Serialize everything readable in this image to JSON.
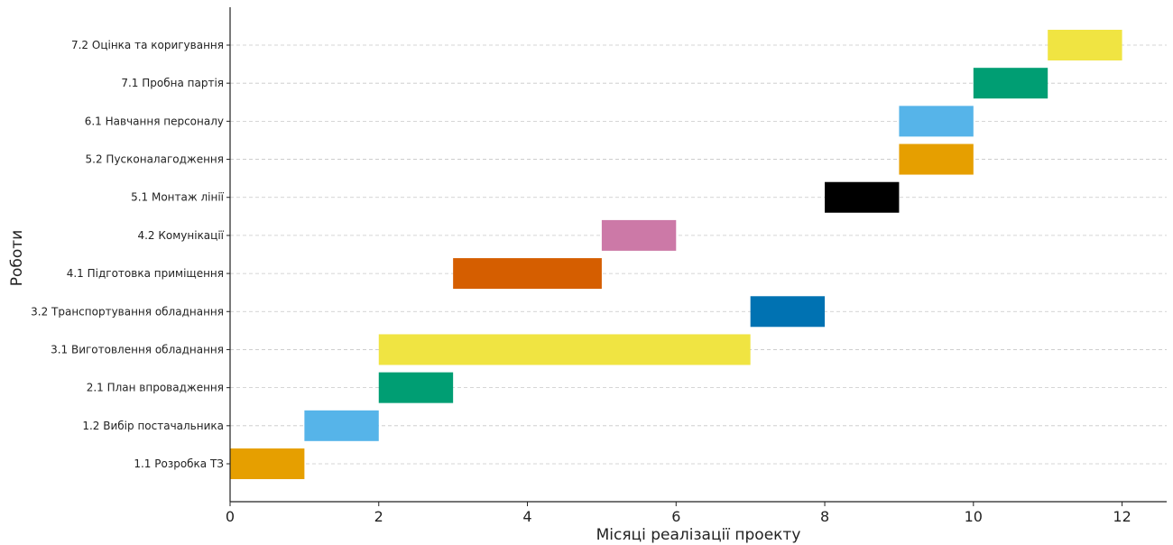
{
  "chart_data": {
    "type": "gantt",
    "title": "",
    "xlabel": "Місяці реалізації проекту",
    "ylabel": "Роботи",
    "xlim": [
      0,
      12.6
    ],
    "xticks": [
      0,
      2,
      4,
      6,
      8,
      10,
      12
    ],
    "grid": "horizontal dashed",
    "tasks": [
      {
        "label": "1.1 Розробка ТЗ",
        "start": 0,
        "end": 1,
        "color": "#E69F00"
      },
      {
        "label": "1.2 Вибір постачальника",
        "start": 1,
        "end": 2,
        "color": "#56B4E9"
      },
      {
        "label": "2.1 План впровадження",
        "start": 2,
        "end": 3,
        "color": "#009E73"
      },
      {
        "label": "3.1 Виготовлення обладнання",
        "start": 2,
        "end": 7,
        "color": "#F0E442"
      },
      {
        "label": "3.2 Транспортування обладнання",
        "start": 7,
        "end": 8,
        "color": "#0072B2"
      },
      {
        "label": "4.1 Підготовка приміщення",
        "start": 3,
        "end": 5,
        "color": "#D55E00"
      },
      {
        "label": "4.2 Комунікації",
        "start": 5,
        "end": 6,
        "color": "#CC79A7"
      },
      {
        "label": "5.1 Монтаж лінії",
        "start": 8,
        "end": 9,
        "color": "#000000"
      },
      {
        "label": "5.2 Пусконалагодження",
        "start": 9,
        "end": 10,
        "color": "#E69F00"
      },
      {
        "label": "6.1 Навчання персоналу",
        "start": 9,
        "end": 10,
        "color": "#56B4E9"
      },
      {
        "label": "7.1 Пробна партія",
        "start": 10,
        "end": 11,
        "color": "#009E73"
      },
      {
        "label": "7.2 Оцінка та коригування",
        "start": 11,
        "end": 12,
        "color": "#F0E442"
      }
    ]
  }
}
